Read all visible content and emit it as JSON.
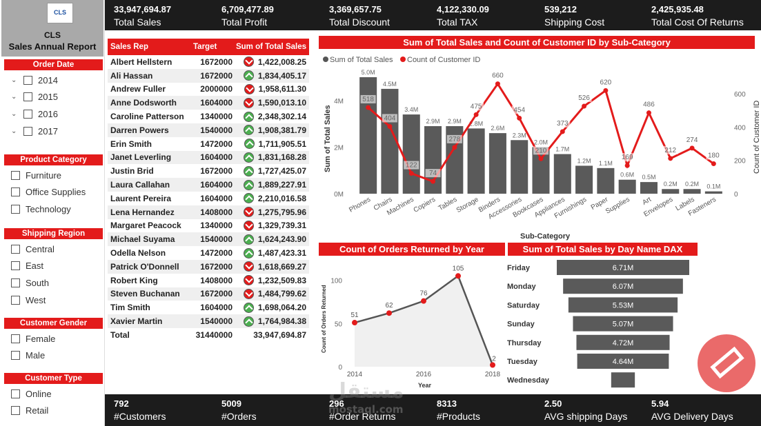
{
  "brand": {
    "logo": "CLS",
    "name": "CLS",
    "title": "Sales Annual Report"
  },
  "slicers": {
    "order_date": {
      "title": "Order Date",
      "items": [
        "2014",
        "2015",
        "2016",
        "2017"
      ]
    },
    "product_category": {
      "title": "Product Category",
      "items": [
        "Furniture",
        "Office Supplies",
        "Technology"
      ]
    },
    "shipping_region": {
      "title": "Shipping Region",
      "items": [
        "Central",
        "East",
        "South",
        "West"
      ]
    },
    "customer_gender": {
      "title": "Customer Gender",
      "items": [
        "Female",
        "Male"
      ]
    },
    "customer_type": {
      "title": "Customer Type",
      "items": [
        "Online",
        "Retail"
      ]
    }
  },
  "kpis_top": [
    {
      "value": "33,947,694.87",
      "label": "Total Sales"
    },
    {
      "value": "6,709,477.89",
      "label": "Total Profit"
    },
    {
      "value": "3,369,657.75",
      "label": "Total Discount"
    },
    {
      "value": "4,122,330.09",
      "label": "Total TAX"
    },
    {
      "value": "539,212",
      "label": "Shipping Cost"
    },
    {
      "value": "2,425,935.48",
      "label": "Total Cost Of Returns"
    }
  ],
  "kpis_bottom": [
    {
      "value": "792",
      "label": "#Customers"
    },
    {
      "value": "5009",
      "label": "#Orders"
    },
    {
      "value": "296",
      "label": "#Order Returns"
    },
    {
      "value": "8313",
      "label": "#Products"
    },
    {
      "value": "2.50",
      "label": "AVG shipping Days"
    },
    {
      "value": "5.94",
      "label": "AVG Delivery Days"
    }
  ],
  "table": {
    "headers": [
      "Sales Rep",
      "Target",
      "Sum of Total Sales"
    ],
    "rows": [
      {
        "rep": "Albert Hellstern",
        "target": "1672000",
        "sales": "1,422,008.25",
        "status": "down"
      },
      {
        "rep": "Ali Hassan",
        "target": "1672000",
        "sales": "1,834,405.17",
        "status": "up"
      },
      {
        "rep": "Andrew Fuller",
        "target": "2000000",
        "sales": "1,958,611.30",
        "status": "down"
      },
      {
        "rep": "Anne Dodsworth",
        "target": "1604000",
        "sales": "1,590,013.10",
        "status": "down"
      },
      {
        "rep": "Caroline Patterson",
        "target": "1340000",
        "sales": "2,348,302.14",
        "status": "up"
      },
      {
        "rep": "Darren Powers",
        "target": "1540000",
        "sales": "1,908,381.79",
        "status": "up"
      },
      {
        "rep": "Erin Smith",
        "target": "1472000",
        "sales": "1,711,905.51",
        "status": "up"
      },
      {
        "rep": "Janet Leverling",
        "target": "1604000",
        "sales": "1,831,168.28",
        "status": "up"
      },
      {
        "rep": "Justin Brid",
        "target": "1672000",
        "sales": "1,727,425.07",
        "status": "up"
      },
      {
        "rep": "Laura Callahan",
        "target": "1604000",
        "sales": "1,889,227.91",
        "status": "up"
      },
      {
        "rep": "Laurent Pereira",
        "target": "1604000",
        "sales": "2,210,016.58",
        "status": "up"
      },
      {
        "rep": "Lena Hernandez",
        "target": "1408000",
        "sales": "1,275,795.96",
        "status": "down"
      },
      {
        "rep": "Margaret Peacock",
        "target": "1340000",
        "sales": "1,329,739.31",
        "status": "down"
      },
      {
        "rep": "Michael Suyama",
        "target": "1540000",
        "sales": "1,624,243.90",
        "status": "up"
      },
      {
        "rep": "Odella Nelson",
        "target": "1472000",
        "sales": "1,487,423.31",
        "status": "up"
      },
      {
        "rep": "Patrick O'Donnell",
        "target": "1672000",
        "sales": "1,618,669.27",
        "status": "down"
      },
      {
        "rep": "Robert King",
        "target": "1408000",
        "sales": "1,232,509.83",
        "status": "down"
      },
      {
        "rep": "Steven Buchanan",
        "target": "1672000",
        "sales": "1,484,799.62",
        "status": "down"
      },
      {
        "rep": "Tim Smith",
        "target": "1604000",
        "sales": "1,698,064.20",
        "status": "up"
      },
      {
        "rep": "Xavier Martin",
        "target": "1540000",
        "sales": "1,764,984.38",
        "status": "up"
      }
    ],
    "total": {
      "label": "Total",
      "target": "31440000",
      "sales": "33,947,694.87"
    }
  },
  "chart_data": [
    {
      "type": "bar",
      "title": "Sum of Total Sales and Count of Customer ID by Sub-Category",
      "legend": [
        "Sum of Total Sales",
        "Count of Customer ID"
      ],
      "xlabel": "Sub-Category",
      "ylabel": "Sum of Total Sales",
      "y2label": "Count of Customer ID",
      "yticks": [
        "0M",
        "2M",
        "4M"
      ],
      "y2ticks": [
        "0",
        "200",
        "400",
        "600"
      ],
      "ylim": [
        0,
        5000000
      ],
      "y2lim": [
        0,
        700
      ],
      "categories": [
        "Phones",
        "Chairs",
        "Machines",
        "Copiers",
        "Tables",
        "Storage",
        "Binders",
        "Accessories",
        "Bookcases",
        "Appliances",
        "Furnishings",
        "Paper",
        "Supplies",
        "Art",
        "Envelopes",
        "Labels",
        "Fasteners"
      ],
      "series": [
        {
          "name": "Sum of Total Sales",
          "values": [
            5000000,
            4500000,
            3400000,
            2900000,
            2900000,
            2800000,
            2600000,
            2300000,
            2000000,
            1700000,
            1200000,
            1100000,
            600000,
            500000,
            200000,
            200000,
            100000
          ],
          "labels": [
            "5.0M",
            "4.5M",
            "3.4M",
            "2.9M",
            "2.9M",
            "2.8M",
            "2.6M",
            "2.3M",
            "2.0M",
            "1.7M",
            "1.2M",
            "1.1M",
            "0.6M",
            "0.5M",
            "0.2M",
            "0.2M",
            "0.1M"
          ]
        },
        {
          "name": "Count of Customer ID",
          "values": [
            518,
            404,
            122,
            74,
            278,
            475,
            660,
            454,
            210,
            373,
            526,
            620,
            169,
            486,
            212,
            274,
            180
          ]
        }
      ]
    },
    {
      "type": "area",
      "title": "Count of Orders Returned by Year",
      "xlabel": "Year",
      "ylabel": "Count of Orders Returned",
      "x": [
        "2014",
        "2015",
        "2016",
        "2017",
        "2018"
      ],
      "values": [
        51,
        62,
        76,
        105,
        2
      ],
      "point_labels": [
        "51",
        "62",
        "76",
        "105",
        "2"
      ],
      "xticks": [
        "2014",
        "2016",
        "2018"
      ],
      "yticks": [
        "0",
        "50",
        "100"
      ],
      "ylim": [
        0,
        110
      ]
    },
    {
      "type": "bar",
      "title": "Sum of Total Sales by Day Name DAX",
      "categories": [
        "Friday",
        "Monday",
        "Saturday",
        "Sunday",
        "Thursday",
        "Tuesday",
        "Wednesday"
      ],
      "values": [
        6710000,
        6070000,
        5530000,
        5070000,
        4720000,
        4640000,
        1200000
      ],
      "labels": [
        "6.71M",
        "6.07M",
        "5.53M",
        "5.07M",
        "4.72M",
        "4.64M",
        ""
      ]
    }
  ],
  "watermark": {
    "text": "مستقل",
    "url": "mostaql.com"
  }
}
